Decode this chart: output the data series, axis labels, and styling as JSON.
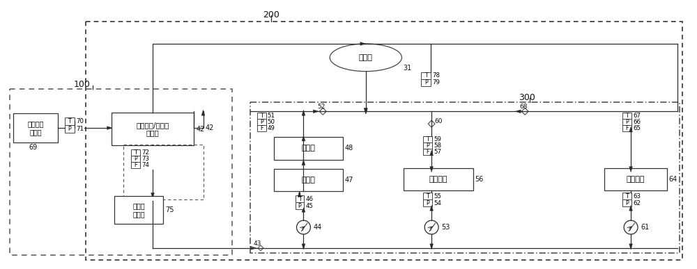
{
  "bg_color": "#ffffff",
  "line_color": "#333333",
  "region200_label": "200",
  "region100_label": "100",
  "region300_label": "300",
  "box_ram_air_inlet": "冲压空气\n气进口",
  "box_ram_air_inlet_id": "69",
  "label_70": "70",
  "label_71": "71",
  "box_hx_label": "冲压空气/丙二醇\n换热器",
  "box_hx_id": "42",
  "box_ram_air_outlet": "冲压空\n气出口",
  "box_ram_air_outlet_id": "75",
  "label_72": "72",
  "label_73": "73",
  "label_74": "74",
  "tank_label": "储液箱",
  "tank_id": "31",
  "label_78": "78",
  "label_79": "79",
  "label_52": "52",
  "label_68": "68",
  "label_60": "60",
  "label_43": "43",
  "label_51": "51",
  "label_50": "50",
  "label_49": "49",
  "box_rectifier": "整流器",
  "box_rectifier_id": "48",
  "box_battery": "锂电池",
  "box_battery_id": "47",
  "label_46": "46",
  "label_45": "45",
  "pump44_id": "44",
  "label_59": "59",
  "label_58": "58",
  "label_57": "57",
  "box_fuelcell": "燃料电池",
  "box_fuelcell_id": "56",
  "label_55": "55",
  "label_54": "54",
  "pump53_id": "53",
  "label_67": "67",
  "label_66": "66",
  "label_65": "65",
  "box_motor": "推进电机",
  "box_motor_id": "64",
  "label_63": "63",
  "label_62": "62",
  "pump61_id": "61"
}
